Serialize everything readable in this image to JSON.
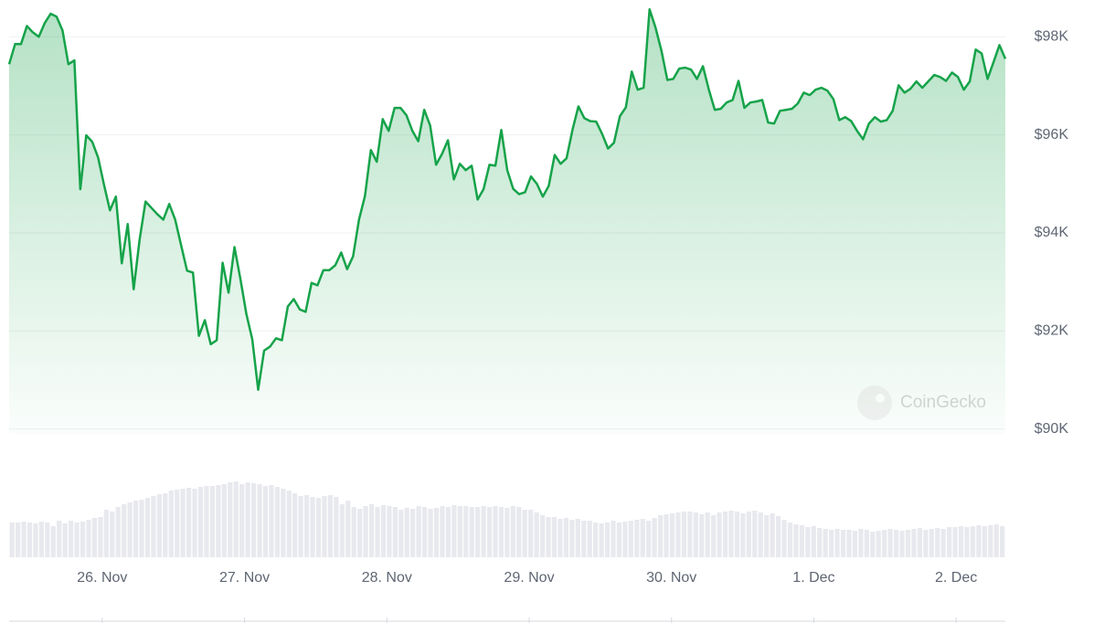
{
  "chart_data": [
    {
      "type": "line",
      "color": "#16a34a",
      "watermark": "CoinGecko",
      "values": [
        97440,
        97850,
        97850,
        98220,
        98090,
        98000,
        98280,
        98470,
        98410,
        98130,
        97440,
        97520,
        94890,
        95990,
        95860,
        95540,
        94980,
        94460,
        94740,
        93380,
        94180,
        92850,
        93860,
        94640,
        94510,
        94380,
        94270,
        94590,
        94270,
        93750,
        93230,
        93190,
        91900,
        92220,
        91730,
        91810,
        93390,
        92780,
        93710,
        93060,
        92350,
        91830,
        90800,
        91600,
        91680,
        91850,
        91810,
        92500,
        92650,
        92440,
        92390,
        92980,
        92930,
        93240,
        93240,
        93340,
        93600,
        93260,
        93520,
        94270,
        94750,
        95690,
        95450,
        96320,
        96080,
        96550,
        96550,
        96400,
        96080,
        95870,
        96510,
        96190,
        95390,
        95610,
        95890,
        95090,
        95410,
        95280,
        95370,
        94680,
        94890,
        95390,
        95370,
        96100,
        95280,
        94900,
        94790,
        94830,
        95150,
        95000,
        94740,
        94960,
        95590,
        95410,
        95520,
        96100,
        96580,
        96340,
        96280,
        96270,
        96020,
        95720,
        95840,
        96380,
        96560,
        97290,
        96920,
        96960,
        98560,
        98190,
        97720,
        97120,
        97140,
        97350,
        97370,
        97330,
        97140,
        97400,
        96920,
        96510,
        96530,
        96660,
        96710,
        97100,
        96550,
        96660,
        96680,
        96710,
        96250,
        96230,
        96490,
        96510,
        96530,
        96640,
        96860,
        96810,
        96920,
        96960,
        96900,
        96730,
        96300,
        96360,
        96280,
        96080,
        95910,
        96230,
        96360,
        96270,
        96300,
        96490,
        97010,
        96860,
        96940,
        97090,
        96960,
        97090,
        97220,
        97180,
        97100,
        97270,
        97180,
        96920,
        97090,
        97740,
        97660,
        97140,
        97480,
        97830,
        97550
      ],
      "xlim": [
        0,
        168
      ],
      "xticks": [
        {
          "value": 15.7,
          "label": "26. Nov"
        },
        {
          "value": 39.7,
          "label": "27. Nov"
        },
        {
          "value": 63.7,
          "label": "28. Nov"
        },
        {
          "value": 87.7,
          "label": "29. Nov"
        },
        {
          "value": 111.7,
          "label": "30. Nov"
        },
        {
          "value": 135.7,
          "label": "1. Dec"
        },
        {
          "value": 159.7,
          "label": "2. Dec"
        }
      ],
      "ylim": [
        89900,
        98750
      ],
      "yticks": [
        {
          "value": 90000,
          "label": "$90K"
        },
        {
          "value": 92000,
          "label": "$92K"
        },
        {
          "value": 94000,
          "label": "$94K"
        },
        {
          "value": 96000,
          "label": "$96K"
        },
        {
          "value": 98000,
          "label": "$98K"
        }
      ],
      "grid": true
    },
    {
      "type": "bar",
      "color": "#e8e9ee",
      "ylim": [
        0,
        100
      ],
      "values": [
        38,
        38,
        39,
        38,
        37,
        39,
        38,
        34,
        40,
        37,
        40,
        38,
        39,
        41,
        43,
        44,
        52,
        50,
        55,
        58,
        60,
        62,
        63,
        65,
        67,
        69,
        70,
        73,
        74,
        75,
        76,
        75,
        77,
        78,
        78,
        79,
        80,
        82,
        83,
        80,
        82,
        81,
        80,
        78,
        79,
        77,
        75,
        73,
        70,
        67,
        68,
        66,
        65,
        67,
        68,
        66,
        58,
        62,
        55,
        53,
        56,
        58,
        55,
        57,
        56,
        55,
        52,
        54,
        53,
        56,
        55,
        53,
        54,
        56,
        55,
        57,
        56,
        56,
        55,
        55,
        56,
        55,
        56,
        55,
        54,
        56,
        55,
        52,
        52,
        49,
        46,
        44,
        44,
        42,
        43,
        41,
        42,
        40,
        40,
        38,
        37,
        38,
        40,
        38,
        39,
        40,
        41,
        42,
        40,
        43,
        46,
        47,
        48,
        49,
        50,
        50,
        49,
        47,
        49,
        46,
        49,
        50,
        51,
        50,
        48,
        50,
        51,
        49,
        46,
        48,
        45,
        41,
        38,
        36,
        35,
        33,
        34,
        32,
        31,
        30,
        31,
        30,
        30,
        29,
        31,
        30,
        28,
        29,
        30,
        31,
        30,
        29,
        30,
        31,
        32,
        30,
        31,
        32,
        31,
        33,
        33,
        34,
        33,
        34,
        35,
        34,
        35,
        36,
        34
      ]
    }
  ]
}
